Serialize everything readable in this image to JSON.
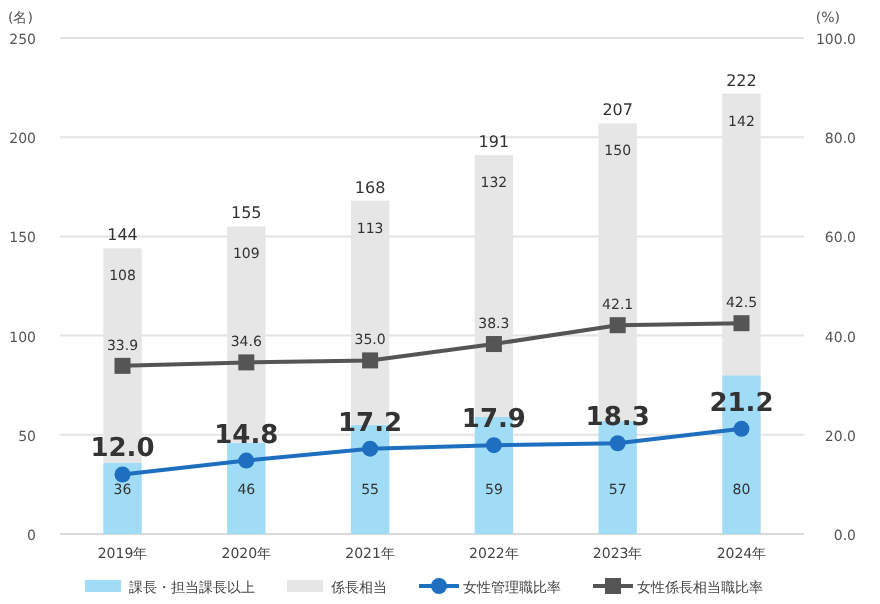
{
  "chart_data": {
    "type": "bar",
    "stacked": true,
    "categories": [
      "2019年",
      "2020年",
      "2021年",
      "2022年",
      "2023年",
      "2024年"
    ],
    "series": [
      {
        "name": "課長・担当課長以上",
        "color": "#a0dcf5",
        "values": [
          36,
          46,
          55,
          59,
          57,
          80
        ]
      },
      {
        "name": "係長相当",
        "color": "#e6e6e6",
        "values": [
          108,
          109,
          113,
          132,
          150,
          142
        ]
      },
      {
        "name": "女性管理職比率",
        "type": "line",
        "axis": "y2",
        "marker": "circle",
        "color": "#1e6fc0",
        "values": [
          12.0,
          14.8,
          17.2,
          17.9,
          18.3,
          21.2
        ],
        "value_labels": [
          "12.0",
          "14.8",
          "17.2",
          "17.9",
          "18.3",
          "21.2"
        ]
      },
      {
        "name": "女性係長相当職比率",
        "type": "line",
        "axis": "y2",
        "marker": "square",
        "color": "#555555",
        "values": [
          33.9,
          34.6,
          35.0,
          38.3,
          42.1,
          42.5
        ],
        "value_labels": [
          "33.9",
          "34.6",
          "35.0",
          "38.3",
          "42.1",
          "42.5"
        ]
      }
    ],
    "totals": [
      "144",
      "155",
      "168",
      "191",
      "207",
      "222"
    ],
    "data_labels": true,
    "ylabel": "(名)",
    "y2label": "(%)",
    "ylim": [
      0,
      250
    ],
    "yticks": [
      0,
      50,
      100,
      150,
      200,
      250
    ],
    "y2lim": [
      0,
      100
    ],
    "y2ticks": [
      {
        "value": 0,
        "label": "0.0"
      },
      {
        "value": 20,
        "label": "20.0"
      },
      {
        "value": 40,
        "label": "40.0"
      },
      {
        "value": 60,
        "label": "60.0"
      },
      {
        "value": 80,
        "label": "80.0"
      },
      {
        "value": 100,
        "label": "100.0"
      }
    ],
    "grid": "y",
    "legend": "bottom",
    "line_style": "solid"
  }
}
